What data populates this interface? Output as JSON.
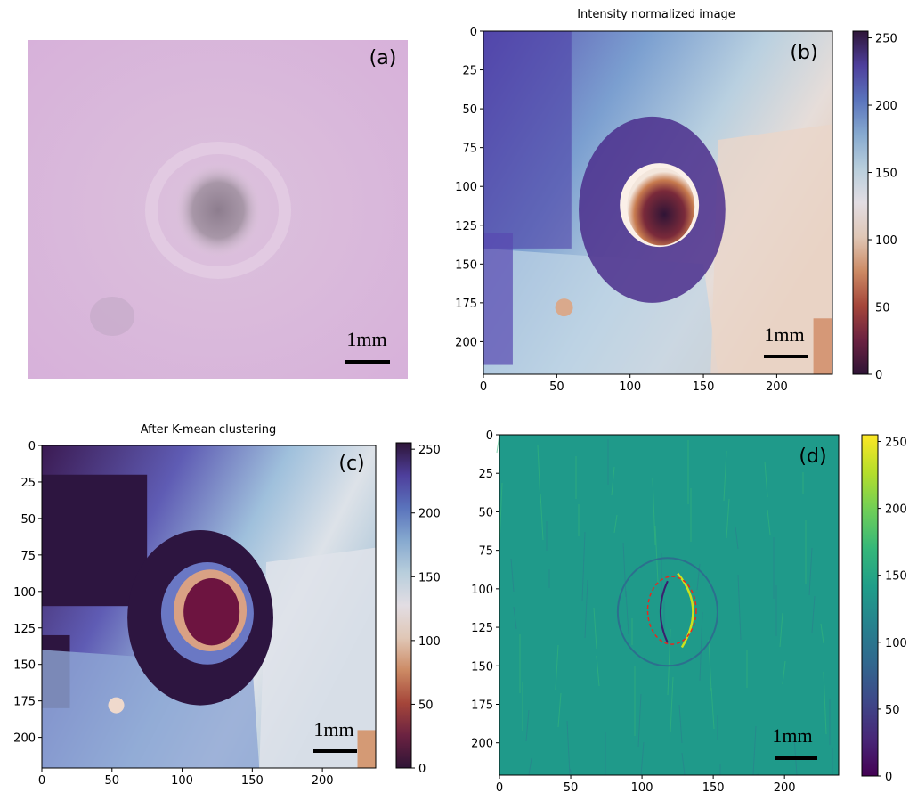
{
  "chart_data": [
    {
      "type": "image",
      "panel_label": "(a)",
      "scale_label": "1mm"
    },
    {
      "type": "heatmap",
      "title": "Intensity normalized image",
      "panel_label": "(b)",
      "scale_label": "1mm",
      "colormap": "twilight_shifted",
      "xlim": [
        0,
        238
      ],
      "ylim": [
        221,
        0
      ],
      "xticks": [
        0,
        50,
        100,
        150,
        200
      ],
      "yticks": [
        0,
        25,
        50,
        75,
        100,
        125,
        150,
        175,
        200
      ],
      "clim": [
        0,
        255
      ],
      "cticks": [
        0,
        50,
        100,
        150,
        200,
        250
      ]
    },
    {
      "type": "heatmap",
      "title": "After K-mean clustering",
      "panel_label": "(c)",
      "scale_label": "1mm",
      "colormap": "twilight_shifted",
      "xlim": [
        0,
        238
      ],
      "ylim": [
        221,
        0
      ],
      "xticks": [
        0,
        50,
        100,
        150,
        200
      ],
      "yticks": [
        0,
        25,
        50,
        75,
        100,
        125,
        150,
        175,
        200
      ],
      "clim": [
        0,
        255
      ],
      "cticks": [
        0,
        50,
        100,
        150,
        200,
        250
      ]
    },
    {
      "type": "heatmap",
      "panel_label": "(d)",
      "scale_label": "1mm",
      "colormap": "viridis",
      "xlim": [
        0,
        238
      ],
      "ylim": [
        221,
        0
      ],
      "xticks": [
        0,
        50,
        100,
        150,
        200
      ],
      "yticks": [
        0,
        25,
        50,
        75,
        100,
        125,
        150,
        175,
        200
      ],
      "clim": [
        0,
        255
      ],
      "cticks": [
        0,
        50,
        100,
        150,
        200,
        250
      ]
    }
  ]
}
